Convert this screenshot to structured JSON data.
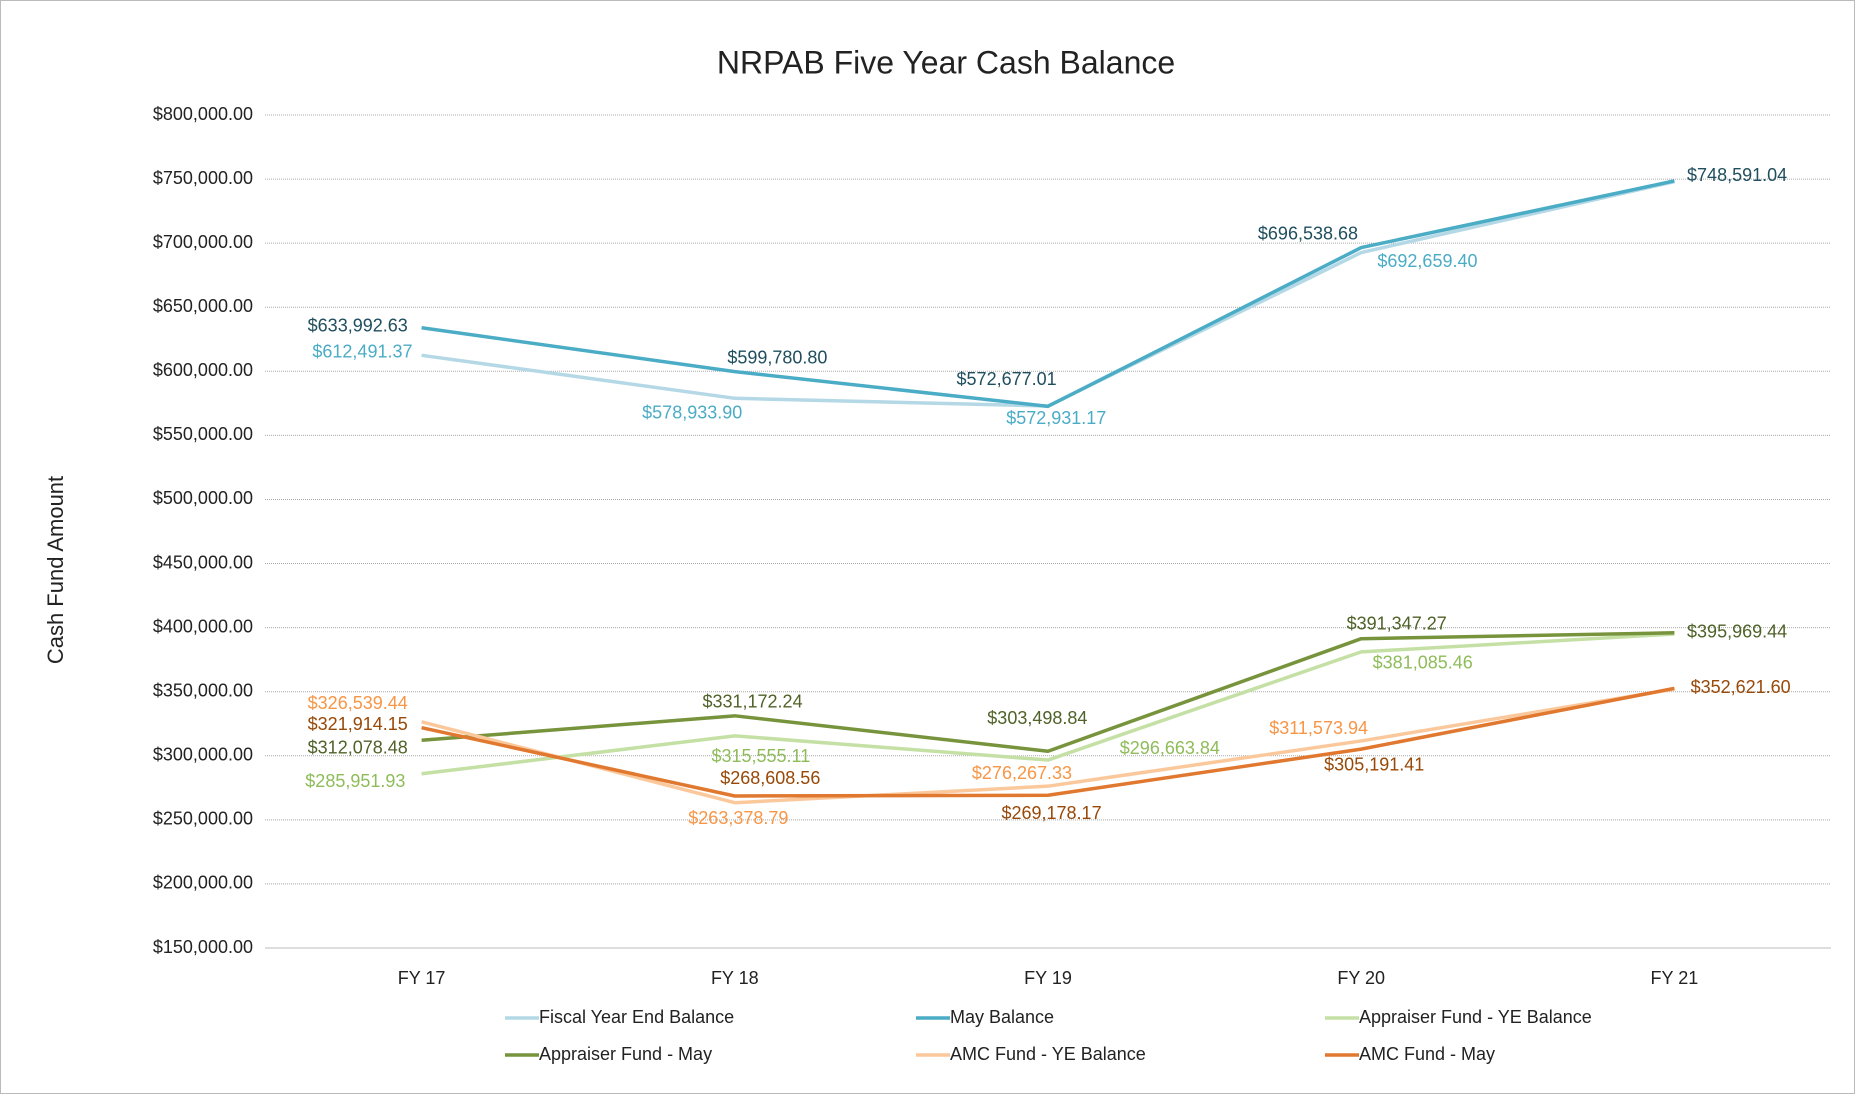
{
  "chart_data": {
    "type": "line",
    "title": "NRPAB Five Year Cash Balance",
    "y_label": "Cash Fund Amount",
    "categories": [
      "FY 17",
      "FY 18",
      "FY 19",
      "FY 20",
      "FY 21"
    ],
    "ylim": [
      150000,
      800000
    ],
    "yticks": [
      {
        "value": 150000,
        "label": "$150,000.00"
      },
      {
        "value": 200000,
        "label": "$200,000.00"
      },
      {
        "value": 250000,
        "label": "$250,000.00"
      },
      {
        "value": 300000,
        "label": "$300,000.00"
      },
      {
        "value": 350000,
        "label": "$350,000.00"
      },
      {
        "value": 400000,
        "label": "$400,000.00"
      },
      {
        "value": 450000,
        "label": "$450,000.00"
      },
      {
        "value": 500000,
        "label": "$500,000.00"
      },
      {
        "value": 550000,
        "label": "$550,000.00"
      },
      {
        "value": 600000,
        "label": "$600,000.00"
      },
      {
        "value": 650000,
        "label": "$650,000.00"
      },
      {
        "value": 700000,
        "label": "$700,000.00"
      },
      {
        "value": 750000,
        "label": "$750,000.00"
      },
      {
        "value": 800000,
        "label": "$800,000.00"
      }
    ],
    "grid": true,
    "legend": "bottom",
    "series": [
      {
        "name": "Fiscal Year End Balance",
        "color": "#b4d8e6",
        "label_color": "#4bacc6",
        "values": [
          612491.37,
          578933.9,
          572931.17,
          692659.4,
          748000
        ],
        "value_labels": [
          "$612,491.37",
          "$578,933.90",
          "$572,931.17",
          "$692,659.40",
          null
        ]
      },
      {
        "name": "May Balance",
        "color": "#4bacc6",
        "label_color": "#1f4e5e",
        "values": [
          633992.63,
          599780.8,
          572677.01,
          696538.68,
          748591.04
        ],
        "value_labels": [
          "$633,992.63",
          "$599,780.80",
          "$572,677.01",
          "$696,538.68",
          "$748,591.04"
        ]
      },
      {
        "name": "Appraiser Fund - YE Balance",
        "color": "#c5e0a5",
        "label_color": "#8fbc5a",
        "values": [
          285951.93,
          315555.11,
          296663.84,
          381085.46,
          395000
        ],
        "value_labels": [
          "$285,951.93",
          "$315,555.11",
          "$296,663.84",
          "$381,085.46",
          null
        ]
      },
      {
        "name": "Appraiser Fund - May",
        "color": "#77933c",
        "label_color": "#4f6228",
        "values": [
          312078.48,
          331172.24,
          303498.84,
          391347.27,
          395969.44
        ],
        "value_labels": [
          "$312,078.48",
          "$331,172.24",
          "$303,498.84",
          "$391,347.27",
          "$395,969.44"
        ]
      },
      {
        "name": "AMC Fund - YE Balance",
        "color": "#fbc89c",
        "label_color": "#f79646",
        "values": [
          326539.44,
          263378.79,
          276267.33,
          311573.94,
          352000
        ],
        "value_labels": [
          "$326,539.44",
          "$263,378.79",
          "$276,267.33",
          "$311,573.94",
          null
        ]
      },
      {
        "name": "AMC Fund - May",
        "color": "#e0782f",
        "label_color": "#984807",
        "values": [
          321914.15,
          268608.56,
          269178.17,
          305191.41,
          352621.6
        ],
        "value_labels": [
          "$321,914.15",
          "$268,608.56",
          "$269,178.17",
          "$305,191.41",
          "$352,621.60"
        ]
      }
    ]
  }
}
